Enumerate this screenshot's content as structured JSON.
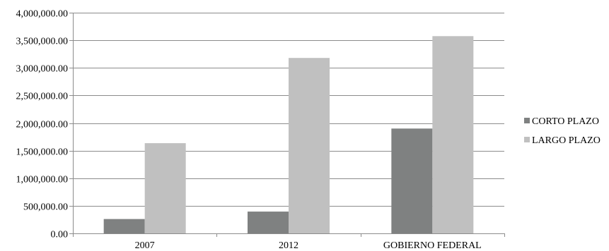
{
  "chart_data": {
    "type": "bar",
    "categories": [
      "2007",
      "2012",
      "GOBIERNO FEDERAL"
    ],
    "series": [
      {
        "name": "CORTO PLAZO",
        "values": [
          260000,
          395000,
          1900000
        ],
        "color": "#7f8181"
      },
      {
        "name": "LARGO PLAZO",
        "values": [
          1635000,
          3180000,
          3575000
        ],
        "color": "#c0c0c0"
      }
    ],
    "ylim": [
      0,
      4000000
    ],
    "yticks": [
      0,
      500000,
      1000000,
      1500000,
      2000000,
      2500000,
      3000000,
      3500000,
      4000000
    ],
    "ytick_labels": [
      "0.00",
      "500,000.00",
      "1,000,000.00",
      "1,500,000.00",
      "2,000,000.00",
      "2,500,000.00",
      "3,000,000.00",
      "3,500,000.00",
      "4,000,000.00"
    ],
    "grid": true,
    "legend_position": "right",
    "title": "",
    "xlabel": "",
    "ylabel": ""
  }
}
